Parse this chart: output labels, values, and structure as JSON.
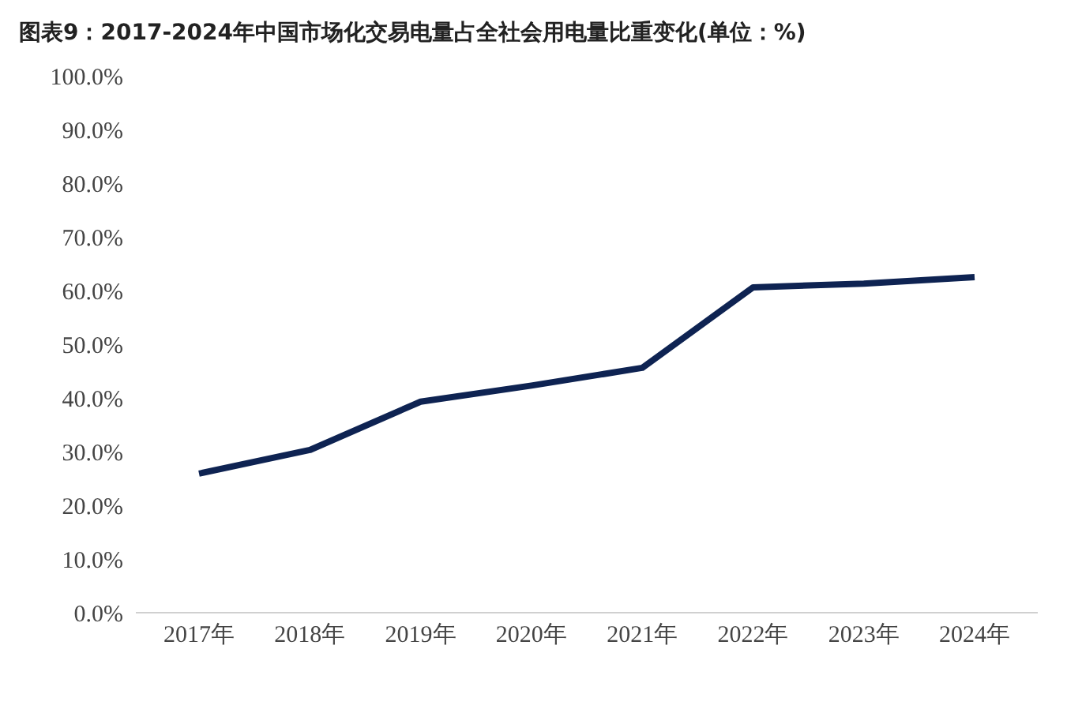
{
  "chart_data": {
    "type": "line",
    "title": "图表9：2017-2024年中国市场化交易电量占全社会用电量比重变化(单位：%)",
    "categories": [
      "2017年",
      "2018年",
      "2019年",
      "2020年",
      "2021年",
      "2022年",
      "2023年",
      "2024年"
    ],
    "series": [
      {
        "color": "#0e2352",
        "values": [
          25.9,
          30.3,
          39.3,
          42.3,
          45.6,
          60.6,
          61.3,
          62.5
        ]
      }
    ],
    "ylim": [
      0,
      100
    ],
    "yticks": [
      {
        "value": 0,
        "label": "0.0%"
      },
      {
        "value": 10,
        "label": "10.0%"
      },
      {
        "value": 20,
        "label": "20.0%"
      },
      {
        "value": 30,
        "label": "30.0%"
      },
      {
        "value": 40,
        "label": "40.0%"
      },
      {
        "value": 50,
        "label": "50.0%"
      },
      {
        "value": 60,
        "label": "60.0%"
      },
      {
        "value": 70,
        "label": "70.0%"
      },
      {
        "value": 80,
        "label": "80.0%"
      },
      {
        "value": 90,
        "label": "90.0%"
      },
      {
        "value": 100,
        "label": "100.0%"
      }
    ],
    "grid": false,
    "legend": false,
    "marker": "none",
    "line_style": "solid"
  }
}
